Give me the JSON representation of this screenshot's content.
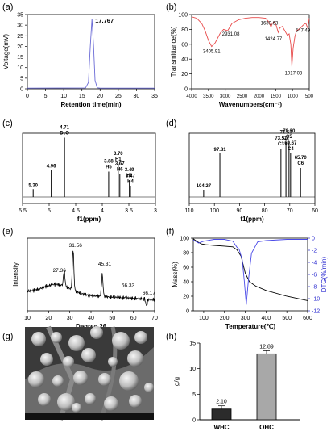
{
  "figure": {
    "panels": [
      "(a)",
      "(b)",
      "(c)",
      "(d)",
      "(e)",
      "(f)",
      "(g)",
      "(h)"
    ]
  },
  "chart_data": [
    {
      "id": "a",
      "type": "line",
      "color": "#6b6bd6",
      "xlabel": "Retention time(min)",
      "ylabel": "Voltage(mV)",
      "xlim": [
        0,
        35
      ],
      "ylim": [
        0,
        35
      ],
      "xticks": [
        0,
        5,
        10,
        15,
        20,
        25,
        30,
        35
      ],
      "yticks": [
        0,
        5,
        10,
        15,
        20,
        25,
        30,
        35
      ],
      "peak_label": "17.767",
      "series": [
        {
          "x": [
            0,
            16.0,
            16.8,
            17.3,
            17.767,
            18.2,
            18.6,
            19.2,
            20,
            35
          ],
          "y": [
            0.3,
            0.4,
            3,
            20,
            33,
            20,
            4,
            0.5,
            0.3,
            0.3
          ]
        }
      ]
    },
    {
      "id": "b",
      "type": "line",
      "color": "#e84a4a",
      "xlabel": "Wavenumbers(cm⁻¹)",
      "ylabel": "Transmittance(%)",
      "xlim": [
        4000,
        500
      ],
      "ylim": [
        0,
        100
      ],
      "xticks": [
        4000,
        3500,
        3000,
        2500,
        2000,
        1500,
        1000,
        500
      ],
      "yticks": [
        0,
        20,
        40,
        60,
        80,
        100
      ],
      "annotations": [
        "3405.91",
        "2931.08",
        "1639.63",
        "1424.77",
        "1017.03",
        "547.49"
      ],
      "series": [
        {
          "x": [
            4000,
            3850,
            3700,
            3600,
            3500,
            3405.91,
            3300,
            3150,
            3050,
            2980,
            2931.08,
            2880,
            2800,
            2600,
            2400,
            2200,
            2000,
            1800,
            1700,
            1639.63,
            1600,
            1550,
            1480,
            1424.77,
            1380,
            1300,
            1250,
            1150,
            1100,
            1050,
            1017.03,
            980,
            930,
            880,
            820,
            760,
            700,
            650,
            600,
            547.49,
            500
          ],
          "y": [
            97,
            95,
            88,
            78,
            65,
            57,
            62,
            75,
            80,
            79,
            78,
            82,
            88,
            93,
            95,
            96,
            96,
            95,
            90,
            83,
            88,
            90,
            85,
            76,
            82,
            84,
            80,
            72,
            74,
            60,
            30,
            55,
            70,
            78,
            80,
            82,
            85,
            87,
            88,
            82,
            95
          ]
        }
      ]
    },
    {
      "id": "c",
      "type": "line",
      "color": "#000000",
      "xlabel": "f1(ppm)",
      "xlim": [
        5.5,
        3.0
      ],
      "xticks": [
        5.5,
        5.0,
        4.5,
        4.0,
        3.5,
        3.0
      ],
      "peaks": [
        {
          "x": 5.3,
          "h": 0.13,
          "label": "5.30"
        },
        {
          "x": 4.96,
          "h": 0.45,
          "label": "4.96"
        },
        {
          "x": 4.71,
          "h": 0.98,
          "label": "4.71",
          "label2": "D₂O"
        },
        {
          "x": 3.88,
          "h": 0.42,
          "label": "3.88",
          "label2": "H5"
        },
        {
          "x": 3.7,
          "h": 0.55,
          "label": "3.70",
          "label2": "H1"
        },
        {
          "x": 3.67,
          "h": 0.38,
          "label": "3.67",
          "label2": "H6"
        },
        {
          "x": 3.49,
          "h": 0.28,
          "label": "3.49",
          "label2": "H2"
        },
        {
          "x": 3.47,
          "h": 0.18,
          "label": "3.47",
          "label2": "H4"
        }
      ]
    },
    {
      "id": "d",
      "type": "line",
      "color": "#000000",
      "xlabel": "f1(ppm)",
      "xlim": [
        110,
        60
      ],
      "xticks": [
        110,
        100,
        90,
        80,
        70,
        60
      ],
      "peaks": [
        {
          "x": 104.27,
          "h": 0.12,
          "label": "104.27"
        },
        {
          "x": 97.81,
          "h": 0.72,
          "label": "97.81"
        },
        {
          "x": 73.51,
          "h": 0.8,
          "label": "73.51",
          "label2": "C3"
        },
        {
          "x": 71.51,
          "h": 0.9,
          "label": "71.51",
          "label2": "C2"
        },
        {
          "x": 70.3,
          "h": 0.92,
          "label": "70.30",
          "label2": "C5"
        },
        {
          "x": 69.67,
          "h": 0.72,
          "label": "69.67",
          "label2": "C4"
        },
        {
          "x": 65.7,
          "h": 0.48,
          "label": "65.70",
          "label2": "C6"
        }
      ]
    },
    {
      "id": "e",
      "type": "line",
      "color": "#000000",
      "xlabel": "Degree 2θ",
      "ylabel": "Intensity",
      "xlim": [
        10,
        70
      ],
      "xticks": [
        10,
        20,
        30,
        40,
        50,
        60,
        70
      ],
      "annotations": [
        "27.36",
        "31.56",
        "45.31",
        "56.33",
        "66.17"
      ],
      "peaks": [
        {
          "x": 27.36,
          "h": 0.5,
          "label": "27.36"
        },
        {
          "x": 31.56,
          "h": 0.9,
          "label": "31.56"
        },
        {
          "x": 45.31,
          "h": 0.6,
          "label": "45.31"
        },
        {
          "x": 56.33,
          "h": 0.26,
          "label": "56.33"
        },
        {
          "x": 66.17,
          "h": 0.14,
          "label": "66.17"
        }
      ]
    },
    {
      "id": "f",
      "type": "line",
      "xlabel": "Temperature(℃)",
      "ylabel": "Mass(%)",
      "ylabel2": "DTG(%/min)",
      "xlim": [
        50,
        600
      ],
      "ylim": [
        0,
        100
      ],
      "ylim2": [
        -12,
        0
      ],
      "xticks": [
        100,
        200,
        300,
        400,
        500,
        600
      ],
      "yticks": [
        0,
        20,
        40,
        60,
        80,
        100
      ],
      "yticks2": [
        0,
        -2,
        -4,
        -6,
        -8,
        -10,
        -12
      ],
      "series": [
        {
          "axis": "left",
          "color": "#000000",
          "x": [
            50,
            70,
            90,
            110,
            150,
            200,
            240,
            260,
            280,
            300,
            320,
            350,
            400,
            500,
            600
          ],
          "y": [
            99,
            95,
            92,
            91,
            90,
            89,
            88,
            84,
            75,
            52,
            40,
            34,
            28,
            20,
            14
          ]
        },
        {
          "axis": "right",
          "color": "#4a4ae8",
          "x": [
            50,
            75,
            100,
            150,
            200,
            240,
            260,
            270,
            285,
            295,
            305,
            315,
            330,
            360,
            400,
            500,
            600
          ],
          "y": [
            -0.3,
            -0.8,
            -0.5,
            -0.2,
            -0.2,
            -0.5,
            -1.5,
            -1.8,
            -3.5,
            -7,
            -11,
            -7,
            -2.5,
            -0.6,
            -0.4,
            -0.2,
            -0.2
          ]
        }
      ]
    },
    {
      "id": "h",
      "type": "bar",
      "ylabel": "g/g",
      "ylim": [
        0,
        15
      ],
      "yticks": [
        0,
        5,
        10,
        15
      ],
      "categories": [
        "WHC",
        "OHC"
      ],
      "values": [
        2.1,
        12.89
      ],
      "value_labels": [
        "2.10",
        "12.89"
      ],
      "colors": [
        "#2b2b2b",
        "#a8a8a8"
      ]
    }
  ]
}
